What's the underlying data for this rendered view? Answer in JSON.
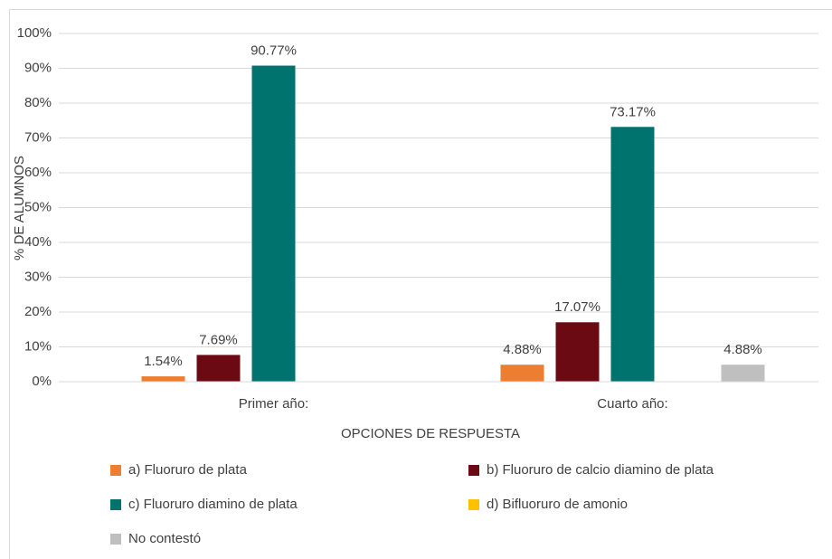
{
  "chart_data": {
    "type": "bar",
    "categories": [
      "Primer año:",
      "Cuarto año:"
    ],
    "series": [
      {
        "name": "a) Fluoruro de plata",
        "color": "#ed7d31",
        "values": [
          1.54,
          4.88
        ],
        "value_labels": [
          "1.54%",
          "4.88%"
        ]
      },
      {
        "name": "b) Fluoruro de calcio diamino de plata",
        "color": "#6b0a12",
        "values": [
          7.69,
          17.07
        ],
        "value_labels": [
          "7.69%",
          "17.07%"
        ]
      },
      {
        "name": "c) Fluoruro diamino de plata",
        "color": "#00736f",
        "values": [
          90.77,
          73.17
        ],
        "value_labels": [
          "90.77%",
          "73.17%"
        ]
      },
      {
        "name": "d) Bifluoruro de amonio",
        "color": "#ffc000",
        "values": [
          null,
          null
        ],
        "value_labels": [
          null,
          null
        ]
      },
      {
        "name": "No contestó",
        "color": "#bfbfbf",
        "values": [
          null,
          4.88
        ],
        "value_labels": [
          null,
          "4.88%"
        ]
      }
    ],
    "x_label": "OPCIONES DE RESPUESTA",
    "y_label": "% DE ALUMNOS",
    "ylim": [
      0,
      100
    ],
    "yticks": [
      {
        "value": 0,
        "label": "0%"
      },
      {
        "value": 10,
        "label": "10%"
      },
      {
        "value": 20,
        "label": "20%"
      },
      {
        "value": 30,
        "label": "30%"
      },
      {
        "value": 40,
        "label": "40%"
      },
      {
        "value": 50,
        "label": "50%"
      },
      {
        "value": 60,
        "label": "60%"
      },
      {
        "value": 70,
        "label": "70%"
      },
      {
        "value": 80,
        "label": "80%"
      },
      {
        "value": 90,
        "label": "90%"
      },
      {
        "value": 100,
        "label": "100%"
      }
    ],
    "grid": true
  }
}
